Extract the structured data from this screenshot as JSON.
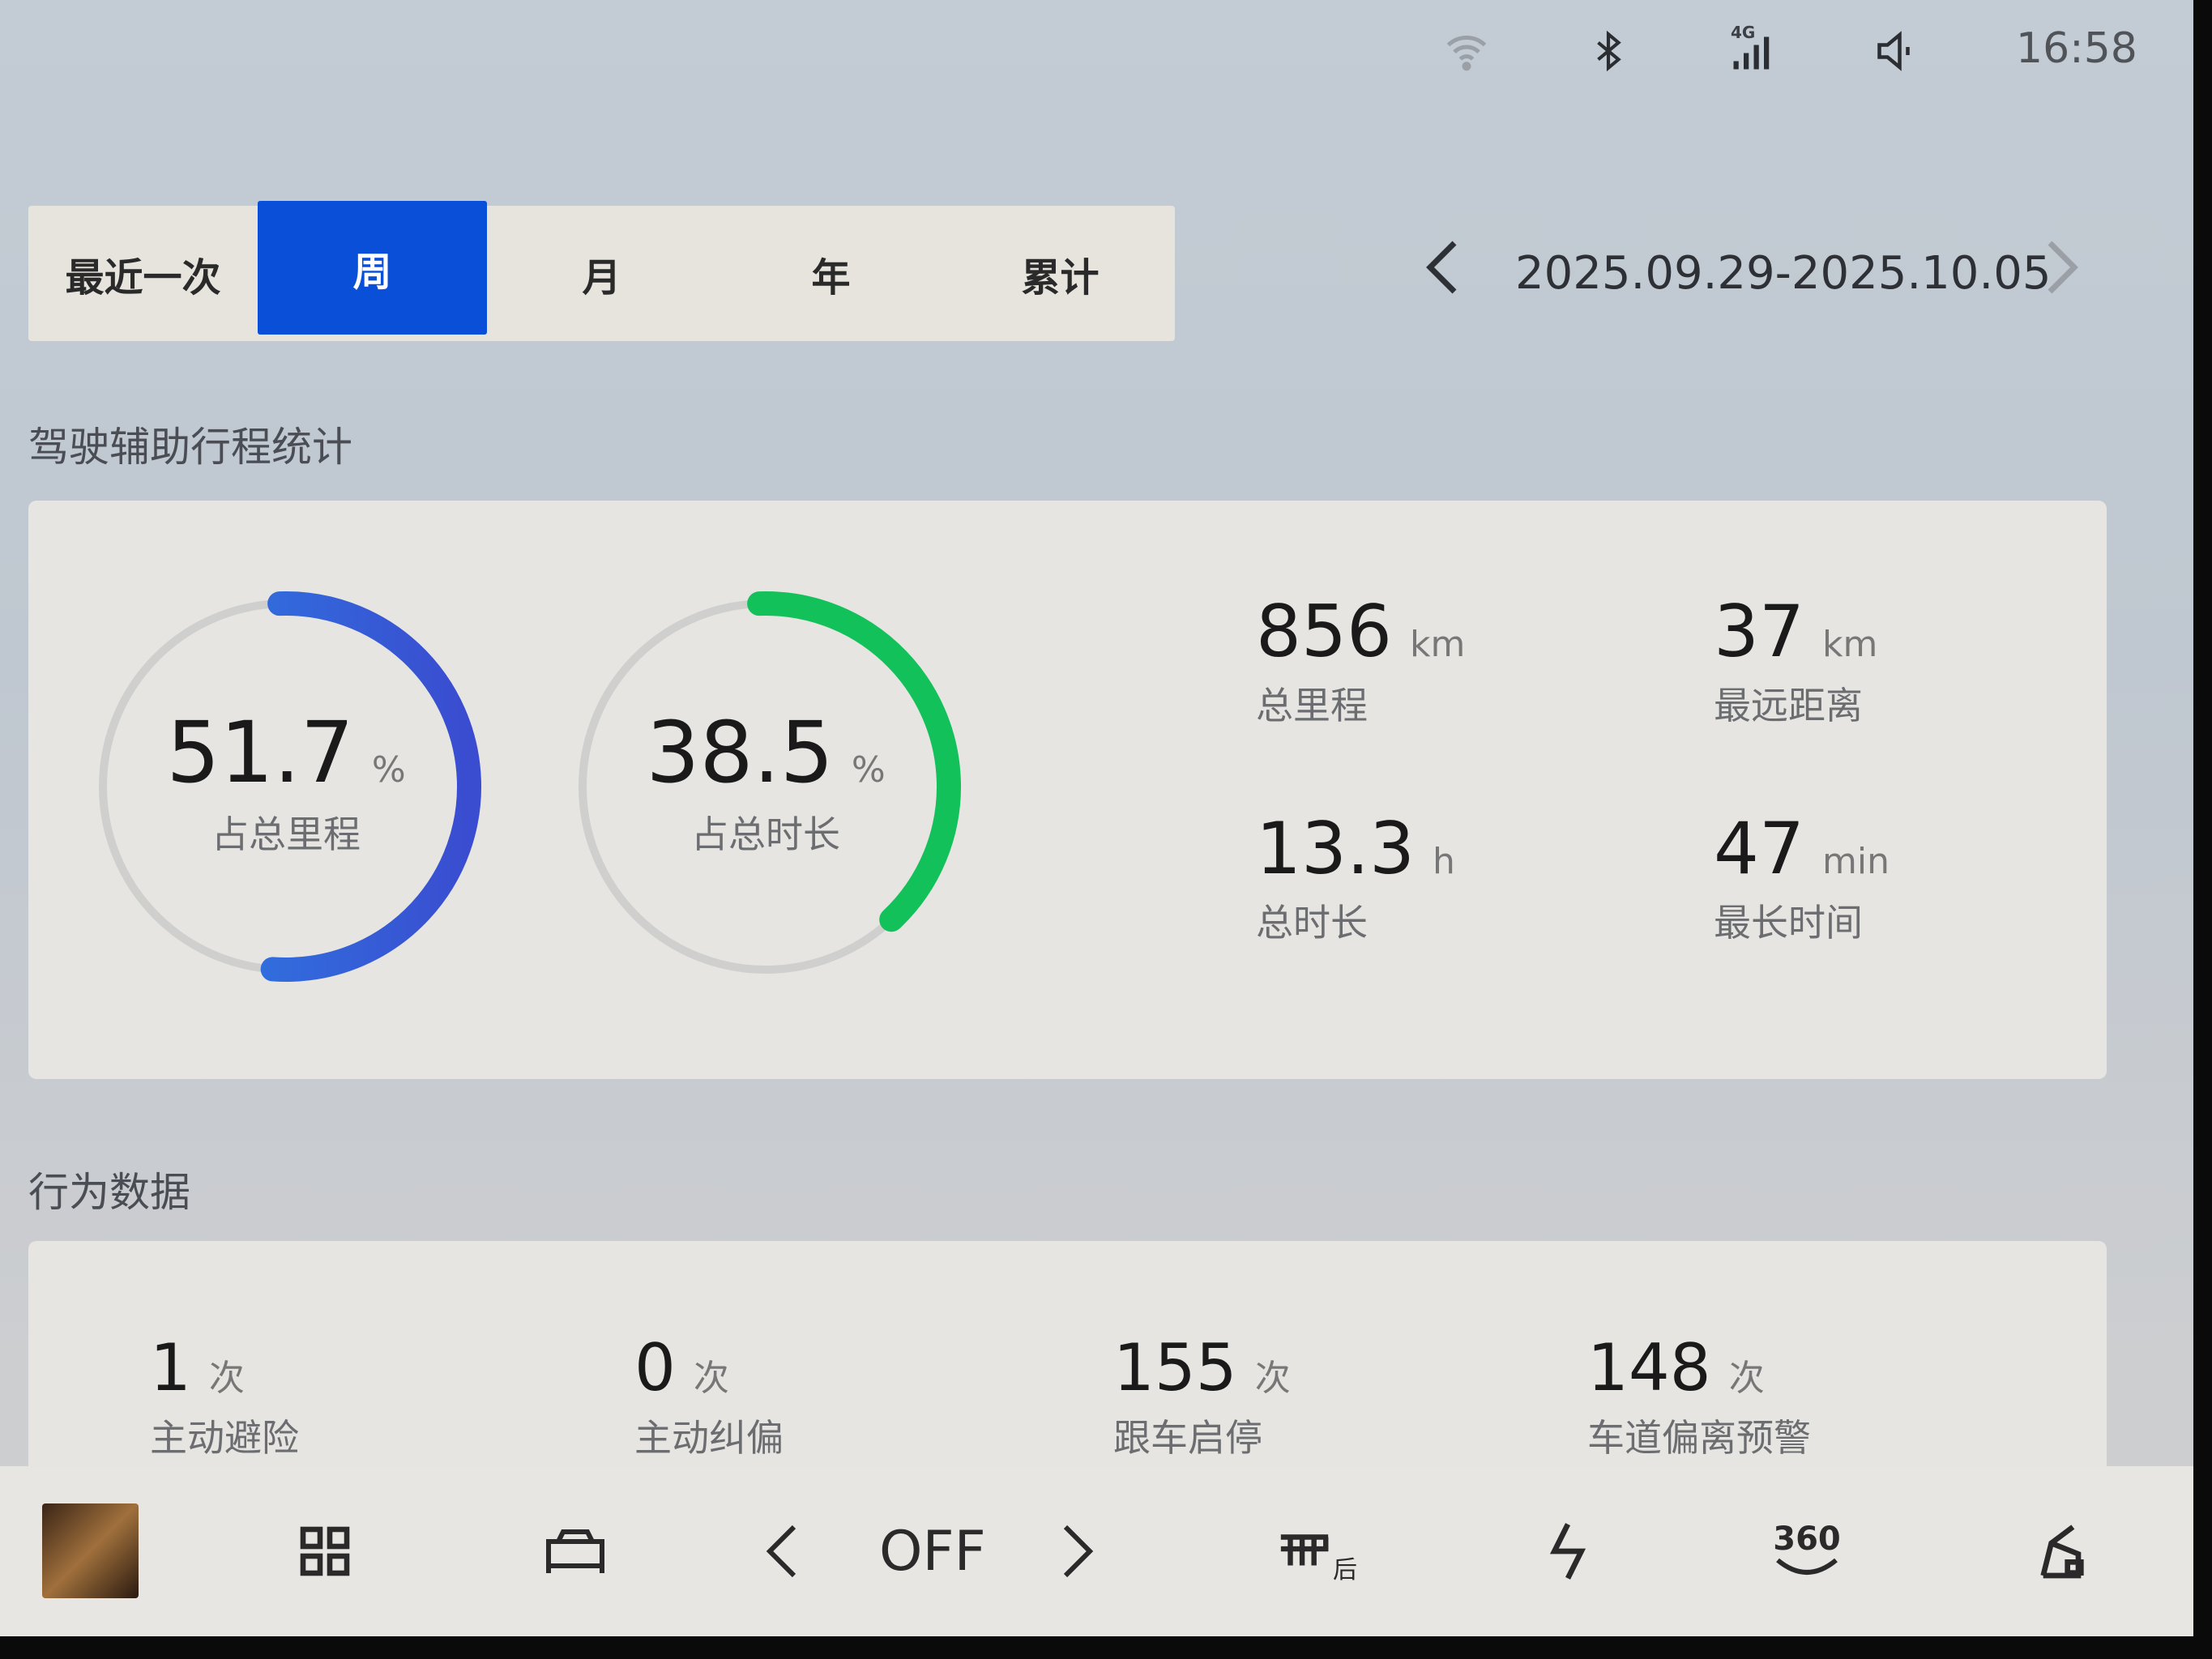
{
  "status_bar": {
    "time": "16:58",
    "signal_label": "4G",
    "icons": [
      "wifi-icon",
      "bluetooth-icon",
      "signal-4g-icon",
      "volume-icon"
    ]
  },
  "period_tabs": {
    "items": [
      "最近一次",
      "周",
      "月",
      "年",
      "累计"
    ],
    "active_index": 1
  },
  "date_range": {
    "text": "2025.09.29-2025.10.05",
    "prev": "‹",
    "next": "›"
  },
  "assist_stats": {
    "title": "驾驶辅助行程统计",
    "mileage_ratio": {
      "value": "51.7",
      "unit": "%",
      "label": "占总里程",
      "fraction": 0.517,
      "color": "#2f6fe0"
    },
    "time_ratio": {
      "value": "38.5",
      "unit": "%",
      "label": "占总时长",
      "fraction": 0.385,
      "color": "#12c15a"
    },
    "total_mileage": {
      "value": "856",
      "unit": "km",
      "label": "总里程"
    },
    "longest_distance": {
      "value": "37",
      "unit": "km",
      "label": "最远距离"
    },
    "total_time": {
      "value": "13.3",
      "unit": "h",
      "label": "总时长"
    },
    "longest_time": {
      "value": "47",
      "unit": "min",
      "label": "最长时间"
    }
  },
  "behavior": {
    "title": "行为数据",
    "items": [
      {
        "value": "1",
        "unit": "次",
        "label": "主动避险"
      },
      {
        "value": "0",
        "unit": "次",
        "label": "主动纠偏"
      },
      {
        "value": "155",
        "unit": "次",
        "label": "跟车启停"
      },
      {
        "value": "148",
        "unit": "次",
        "label": "车道偏离预警"
      }
    ]
  },
  "dock": {
    "fan_state": "OFF",
    "rear_defrost_label": "后",
    "view_label": "360",
    "accent": "#0a4fd8"
  }
}
